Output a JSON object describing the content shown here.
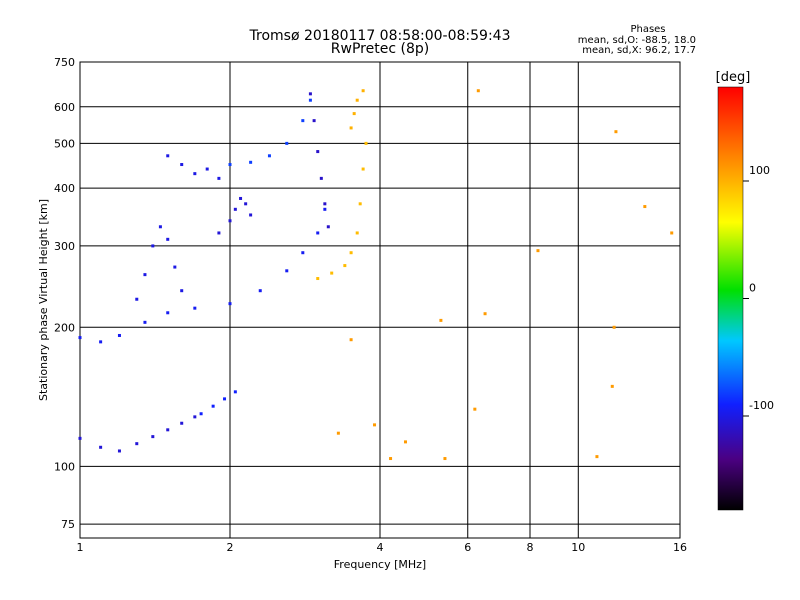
{
  "title_line1": "Tromsø 20180117 08:58:00-08:59:43",
  "title_line2": "RwPretec (8p)",
  "stats": {
    "header": "Phases",
    "o_line": "mean, sd,O: -88.5, 18.0",
    "x_line": "mean, sd,X:  96.2, 17.7"
  },
  "colorbar": {
    "unit": "[deg]",
    "range": [
      -180,
      180
    ],
    "tick_values": [
      100,
      0,
      -100
    ],
    "tick_labels": [
      "100",
      "0",
      "-100"
    ]
  },
  "chart_data": {
    "type": "scatter",
    "title": "Tromsø 20180117 08:58:00-08:59:43",
    "subtitle": "RwPretec (8p)",
    "xlabel": "Frequency [MHz]",
    "ylabel": "Stationary phase Virtual Height [km]",
    "xscale": "log",
    "yscale": "log",
    "xlim": [
      1,
      16
    ],
    "ylim": [
      70,
      750
    ],
    "x_ticks": [
      1,
      2,
      4,
      6,
      8,
      10,
      16
    ],
    "x_tick_labels": [
      "1",
      "2",
      "4",
      "6",
      "8",
      "10",
      "16"
    ],
    "y_ticks": [
      75,
      100,
      200,
      300,
      400,
      500,
      600,
      750
    ],
    "y_tick_labels": [
      "75",
      "100",
      "200",
      "300",
      "400",
      "500",
      "600",
      "750"
    ],
    "grid": true,
    "color_variable": "phase [deg]",
    "series": [
      {
        "mode": "O",
        "traces": [
          {
            "x": [
              1.0,
              1.1,
              1.2,
              1.35,
              1.5,
              1.7,
              2.0,
              2.3,
              2.6,
              2.8,
              3.0,
              3.1
            ],
            "y": [
              190,
              186,
              192,
              205,
              215,
              220,
              225,
              240,
              265,
              290,
              320,
              360
            ],
            "phase": -95
          },
          {
            "x": [
              1.3,
              1.35,
              1.4,
              1.45,
              1.5,
              1.55,
              1.6
            ],
            "y": [
              230,
              260,
              300,
              330,
              310,
              270,
              240
            ],
            "phase": -100
          },
          {
            "x": [
              1.5,
              1.6,
              1.7,
              1.8,
              1.9
            ],
            "y": [
              470,
              450,
              430,
              440,
              420
            ],
            "phase": -100
          },
          {
            "x": [
              1.9,
              2.0,
              2.05,
              2.1,
              2.15,
              2.2
            ],
            "y": [
              320,
              340,
              360,
              380,
              370,
              350
            ],
            "phase": -105
          },
          {
            "x": [
              2.0,
              2.2,
              2.4,
              2.6,
              2.8,
              2.9
            ],
            "y": [
              450,
              455,
              470,
              500,
              560,
              620
            ],
            "phase": -80
          },
          {
            "x": [
              2.9,
              2.95,
              3.0,
              3.05,
              3.1,
              3.15
            ],
            "y": [
              640,
              560,
              480,
              420,
              370,
              330
            ],
            "phase": -110
          },
          {
            "x": [
              1.0,
              1.1,
              1.2,
              1.3,
              1.4,
              1.5,
              1.6,
              1.7
            ],
            "y": [
              115,
              110,
              108,
              112,
              116,
              120,
              124,
              128
            ],
            "phase": -105
          },
          {
            "x": [
              1.75,
              1.85,
              1.95,
              2.05
            ],
            "y": [
              130,
              135,
              140,
              145
            ],
            "phase": -90
          }
        ]
      },
      {
        "mode": "X",
        "traces": [
          {
            "x": [
              3.0,
              3.2,
              3.4,
              3.5,
              3.6,
              3.65,
              3.7,
              3.75
            ],
            "y": [
              255,
              262,
              272,
              290,
              320,
              370,
              440,
              500
            ],
            "phase": 95
          },
          {
            "x": [
              3.5,
              3.55,
              3.6,
              3.7
            ],
            "y": [
              540,
              580,
              620,
              650
            ],
            "phase": 100
          }
        ]
      },
      {
        "mode": "scattered",
        "traces": [
          {
            "x": [
              3.3,
              3.5,
              4.2,
              5.3,
              5.4,
              6.2,
              6.3,
              6.5,
              8.3,
              10.9,
              11.7,
              11.9,
              13.6,
              15.4,
              4.5,
              3.9,
              11.8
            ],
            "y": [
              118,
              188,
              104,
              207,
              104,
              133,
              650,
              214,
              293,
              105,
              149,
              530,
              365,
              320,
              113,
              123,
              200
            ],
            "phase": 110
          }
        ]
      }
    ]
  }
}
